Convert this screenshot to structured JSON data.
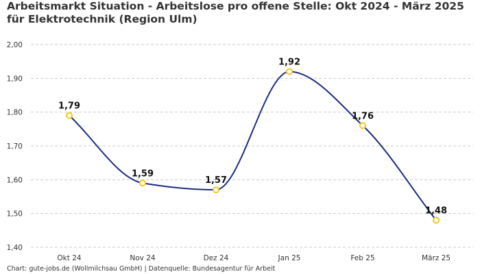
{
  "chart_data": {
    "type": "line",
    "title": "Arbeitsmarkt Situation - Arbeitslose pro offene Stelle: Okt 2024 - März 2025 für Elektrotechnik (Region Ulm)",
    "categories": [
      "Okt 24",
      "Nov 24",
      "Dez 24",
      "Jan 25",
      "Feb 25",
      "März 25"
    ],
    "series": [
      {
        "name": "Arbeitslose pro offene Stelle",
        "values": [
          1.79,
          1.59,
          1.57,
          1.92,
          1.76,
          1.48
        ],
        "labels": [
          "1,79",
          "1,59",
          "1,57",
          "1,92",
          "1,76",
          "1,48"
        ]
      }
    ],
    "ylim": [
      1.4,
      2.0
    ],
    "yticks": [
      1.4,
      1.5,
      1.6,
      1.7,
      1.8,
      1.9,
      2.0
    ],
    "ytick_labels": [
      "1,40",
      "1,50",
      "1,60",
      "1,70",
      "1,80",
      "1,90",
      "2,00"
    ],
    "xlabel": "",
    "ylabel": "",
    "grid": true,
    "colors": {
      "line": "#1a2a80",
      "marker_stroke": "#f5c518",
      "marker_fill": "#ffffff",
      "grid": "#cccccc"
    }
  },
  "footer": "Chart: gute-jobs.de (Wollmilchsau GmbH) | Datenquelle: Bundesagentur für Arbeit"
}
